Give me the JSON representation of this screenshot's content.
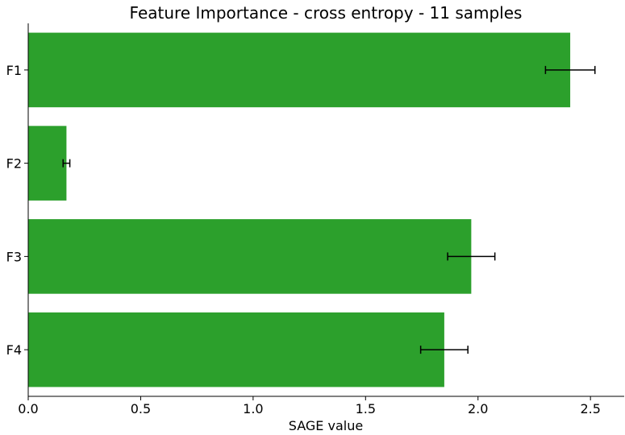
{
  "chart_data": {
    "type": "bar",
    "orientation": "horizontal",
    "title": "Feature Importance - cross entropy - 11 samples",
    "xlabel": "SAGE value",
    "ylabel": "",
    "categories": [
      "F1",
      "F2",
      "F3",
      "F4"
    ],
    "values": [
      2.41,
      0.17,
      1.97,
      1.85
    ],
    "errors": [
      0.11,
      0.015,
      0.105,
      0.105
    ],
    "xlim": [
      0,
      2.65
    ],
    "xticks": [
      "0.0",
      "0.5",
      "1.0",
      "1.5",
      "2.0",
      "2.5"
    ],
    "bar_color": "#2ca02c",
    "error_color": "#000000",
    "grid": false,
    "legend": "none"
  }
}
